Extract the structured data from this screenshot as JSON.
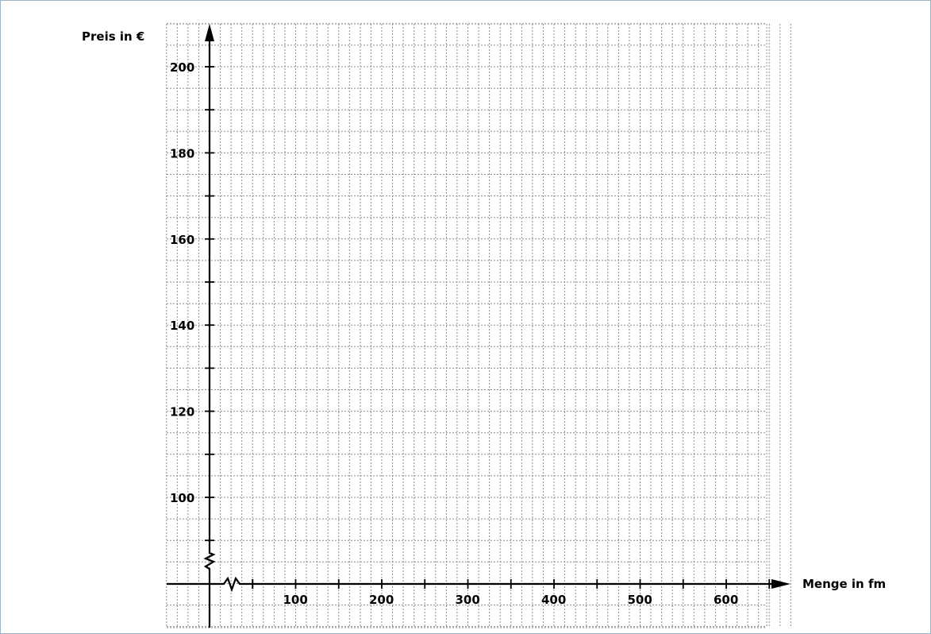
{
  "chart_data": {
    "type": "scatter",
    "title": "",
    "xlabel": "Menge in fm",
    "ylabel": "Preis in €",
    "xlim": [
      0,
      650
    ],
    "ylim": [
      80,
      200
    ],
    "x_break": true,
    "y_break": true,
    "x_ticks": [
      100,
      200,
      300,
      400,
      500,
      600
    ],
    "y_ticks": [
      100,
      120,
      140,
      160,
      180,
      200
    ],
    "x_minor_step": 25,
    "y_minor_step": 5,
    "grid": true,
    "series": []
  }
}
